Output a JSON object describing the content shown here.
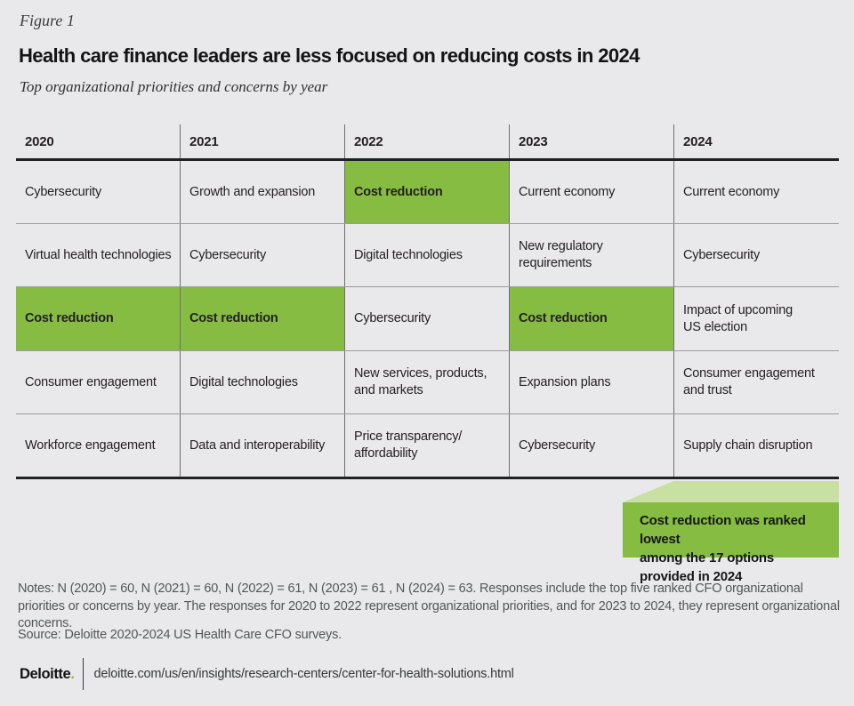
{
  "figure_label": "Figure 1",
  "title": "Health care finance leaders are less focused on reducing costs in 2024",
  "subtitle": "Top organizational priorities and concerns by year",
  "chart_data": {
    "type": "table",
    "title": "Health care finance leaders are less focused on reducing costs in 2024",
    "subtitle": "Top organizational priorities and concerns by year",
    "columns": [
      "2020",
      "2021",
      "2022",
      "2023",
      "2024"
    ],
    "rows": [
      [
        {
          "text": "Cybersecurity",
          "highlight": false
        },
        {
          "text": "Growth and expansion",
          "highlight": false
        },
        {
          "text": "Cost reduction",
          "highlight": true
        },
        {
          "text": "Current economy",
          "highlight": false
        },
        {
          "text": "Current economy",
          "highlight": false
        }
      ],
      [
        {
          "text": "Virtual health technologies",
          "highlight": false
        },
        {
          "text": "Cybersecurity",
          "highlight": false
        },
        {
          "text": "Digital technologies",
          "highlight": false
        },
        {
          "text": "New regulatory requirements",
          "highlight": false
        },
        {
          "text": "Cybersecurity",
          "highlight": false
        }
      ],
      [
        {
          "text": "Cost reduction",
          "highlight": true
        },
        {
          "text": "Cost reduction",
          "highlight": true
        },
        {
          "text": "Cybersecurity",
          "highlight": false
        },
        {
          "text": "Cost reduction",
          "highlight": true
        },
        {
          "text": "Impact of upcoming\nUS election",
          "highlight": false
        }
      ],
      [
        {
          "text": "Consumer engagement",
          "highlight": false
        },
        {
          "text": "Digital technologies",
          "highlight": false
        },
        {
          "text": "New services, products,\nand markets",
          "highlight": false
        },
        {
          "text": "Expansion plans",
          "highlight": false
        },
        {
          "text": "Consumer engagement\nand trust",
          "highlight": false
        }
      ],
      [
        {
          "text": "Workforce engagement",
          "highlight": false
        },
        {
          "text": "Data and interoperability",
          "highlight": false
        },
        {
          "text": "Price transparency/\naffordability",
          "highlight": false
        },
        {
          "text": "Cybersecurity",
          "highlight": false
        },
        {
          "text": "Supply chain disruption",
          "highlight": false
        }
      ]
    ],
    "highlight_meaning": "Cost reduction ranking position per year",
    "legend_position": "none",
    "annotation": "Cost reduction was ranked lowest\namong the 17 options provided in 2024"
  },
  "callout": {
    "text": "Cost reduction was ranked lowest\namong the 17 options provided in 2024"
  },
  "notes": "Notes: N (2020) = 60, N (2021) = 60, N (2022) = 61, N (2023) = 61 , N (2024) = 63. Responses include the top five ranked CFO organizational priorities or concerns  by year. The responses for 2020 to 2022 represent organizational priorities, and for 2023 to 2024, they represent organizational concerns.",
  "source": "Source: Deloitte 2020-2024 US Health Care CFO surveys.",
  "footer": {
    "brand": "Deloitte",
    "brand_period": ".",
    "url": "deloitte.com/us/en/insights/research-centers/center-for-health-solutions.html"
  },
  "colors": {
    "highlight_green": "#86bc41",
    "fold_light_green": "#c8e0a2",
    "page_background": "#e9e9eb",
    "heavy_rule": "#202124",
    "row_rule": "#9b9c9e",
    "column_rule": "#6e6f72",
    "notes_text": "#54565a"
  }
}
